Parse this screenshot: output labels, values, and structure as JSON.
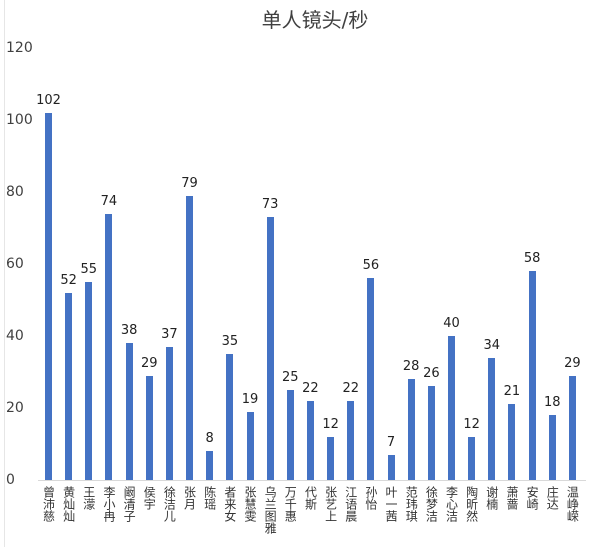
{
  "chart_data": {
    "type": "bar",
    "title": "单人镜头/秒",
    "xlabel": "",
    "ylabel": "",
    "ylim": [
      0,
      120
    ],
    "yticks": [
      0,
      20,
      40,
      60,
      80,
      100,
      120
    ],
    "grid": false,
    "legend": null,
    "bar_color": "#4472c4",
    "categories": [
      "曾沛慈",
      "黄灿灿",
      "王濛",
      "李小冉",
      "阚清子",
      "侯宇",
      "徐洁儿",
      "张月",
      "陈瑶",
      "者来女",
      "张慧雯",
      "乌兰图雅",
      "万千惠",
      "代斯",
      "张艺上",
      "江语晨",
      "孙怡",
      "叶一茜",
      "范玮琪",
      "徐梦洁",
      "李心洁",
      "陶昕然",
      "谢楠",
      "萧蔷",
      "安崎",
      "庄达",
      "温峥嵘"
    ],
    "values": [
      102,
      52,
      55,
      74,
      38,
      29,
      37,
      79,
      8,
      35,
      19,
      73,
      25,
      22,
      12,
      22,
      56,
      7,
      28,
      26,
      40,
      12,
      34,
      21,
      58,
      18,
      29
    ]
  }
}
